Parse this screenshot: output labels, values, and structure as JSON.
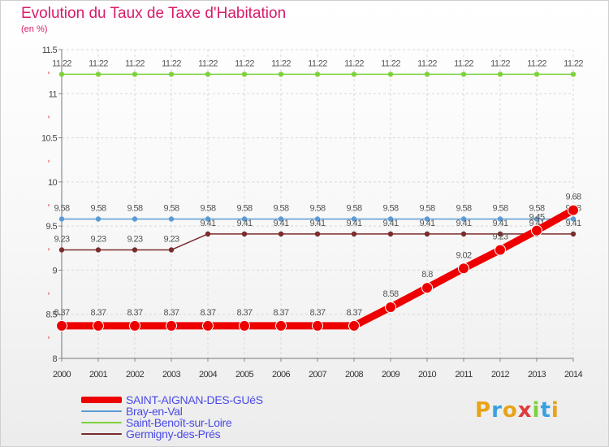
{
  "chart_data": {
    "type": "line",
    "title": "Evolution du Taux de Taxe d'Habitation",
    "ylabel": "(en %)",
    "xlabel": "",
    "categories": [
      "2000",
      "2001",
      "2002",
      "2003",
      "2004",
      "2005",
      "2006",
      "2007",
      "2008",
      "2009",
      "2010",
      "2011",
      "2012",
      "2013",
      "2014"
    ],
    "ylim": [
      8,
      11.5
    ],
    "yticks": [
      "8",
      "8.5",
      "9",
      "9.5",
      "10",
      "10.5",
      "11",
      "11.5"
    ],
    "ytick_values": [
      8,
      8.5,
      9,
      9.5,
      10,
      10.5,
      11,
      11.5
    ],
    "grid": true,
    "series": [
      {
        "name": "Saint-Benoît-sur-Loire",
        "color": "#7ed13c",
        "values": [
          11.22,
          11.22,
          11.22,
          11.22,
          11.22,
          11.22,
          11.22,
          11.22,
          11.22,
          11.22,
          11.22,
          11.22,
          11.22,
          11.22,
          11.22
        ]
      },
      {
        "name": "Bray-en-Val",
        "color": "#5b9bd5",
        "values": [
          9.58,
          9.58,
          9.58,
          9.58,
          9.58,
          9.58,
          9.58,
          9.58,
          9.58,
          9.58,
          9.58,
          9.58,
          9.58,
          9.58,
          9.58
        ]
      },
      {
        "name": "Germigny-des-Prés",
        "color": "#7b2c2c",
        "values": [
          9.23,
          9.23,
          9.23,
          9.23,
          9.41,
          9.41,
          9.41,
          9.41,
          9.41,
          9.41,
          9.41,
          9.41,
          9.41,
          9.41,
          9.41
        ]
      },
      {
        "name": "SAINT-AIGNAN-DES-GUéS",
        "color": "#ee0000",
        "values": [
          8.37,
          8.37,
          8.37,
          8.37,
          8.37,
          8.37,
          8.37,
          8.37,
          8.37,
          8.58,
          8.8,
          9.02,
          9.23,
          9.45,
          9.68
        ]
      }
    ],
    "legend": [
      {
        "name": "SAINT-AIGNAN-DES-GUéS",
        "color": "#ee0000"
      },
      {
        "name": "Bray-en-Val",
        "color": "#5b9bd5"
      },
      {
        "name": "Saint-Benoît-sur-Loire",
        "color": "#7ed13c"
      },
      {
        "name": "Germigny-des-Prés",
        "color": "#7b2c2c"
      }
    ]
  },
  "logo": {
    "letters": [
      "P",
      "r",
      "o",
      "x",
      "i",
      "t",
      "i"
    ],
    "colors": [
      "#e8a317",
      "#3aa0e0",
      "#e8a317",
      "#e03a3a",
      "#7ed13c",
      "#3aa0e0",
      "#e8a317"
    ]
  }
}
